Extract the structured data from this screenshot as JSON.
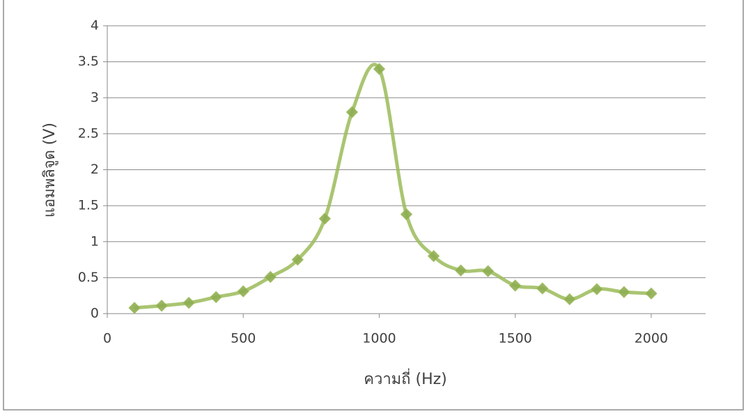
{
  "chart_data": {
    "type": "line",
    "x_label": "ความถี่ (Hz)",
    "y_label": "แอมพลิจูด (V)",
    "x": [
      100,
      200,
      300,
      400,
      500,
      600,
      700,
      800,
      900,
      1000,
      1100,
      1200,
      1300,
      1400,
      1500,
      1600,
      1700,
      1800,
      1900,
      2000
    ],
    "values": [
      0.08,
      0.11,
      0.15,
      0.23,
      0.31,
      0.51,
      0.75,
      1.32,
      2.8,
      3.4,
      1.38,
      0.8,
      0.6,
      0.59,
      0.39,
      0.35,
      0.2,
      0.34,
      0.3,
      0.28
    ],
    "color": "#9bbb59",
    "marker_color": "#8fae52",
    "xlim": [
      0,
      2200
    ],
    "xticks": [
      0,
      500,
      1000,
      1500,
      2000
    ],
    "ylim": [
      0,
      4
    ],
    "yticks": [
      0,
      0.5,
      1,
      1.5,
      2,
      2.5,
      3,
      3.5,
      4
    ],
    "grid": true,
    "smooth": true
  }
}
